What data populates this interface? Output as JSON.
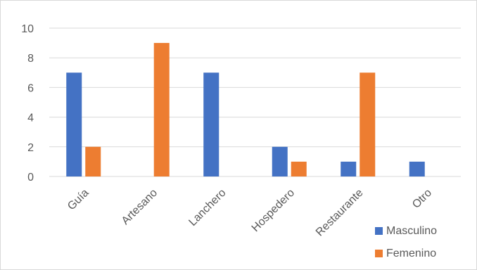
{
  "chart_data": {
    "type": "bar",
    "categories": [
      "Guía",
      "Artesano",
      "Lanchero",
      "Hospedero",
      "Restaurante",
      "Otro"
    ],
    "series": [
      {
        "name": "Masculino",
        "values": [
          7,
          0,
          7,
          2,
          1,
          1
        ],
        "color": "#4472c4"
      },
      {
        "name": "Femenino",
        "values": [
          2,
          9,
          0,
          1,
          7,
          0
        ],
        "color": "#ed7d31"
      }
    ],
    "ylim": [
      0,
      10
    ],
    "yticks": [
      0,
      2,
      4,
      6,
      8,
      10
    ],
    "grid": true,
    "legend_position": "bottom-right"
  }
}
